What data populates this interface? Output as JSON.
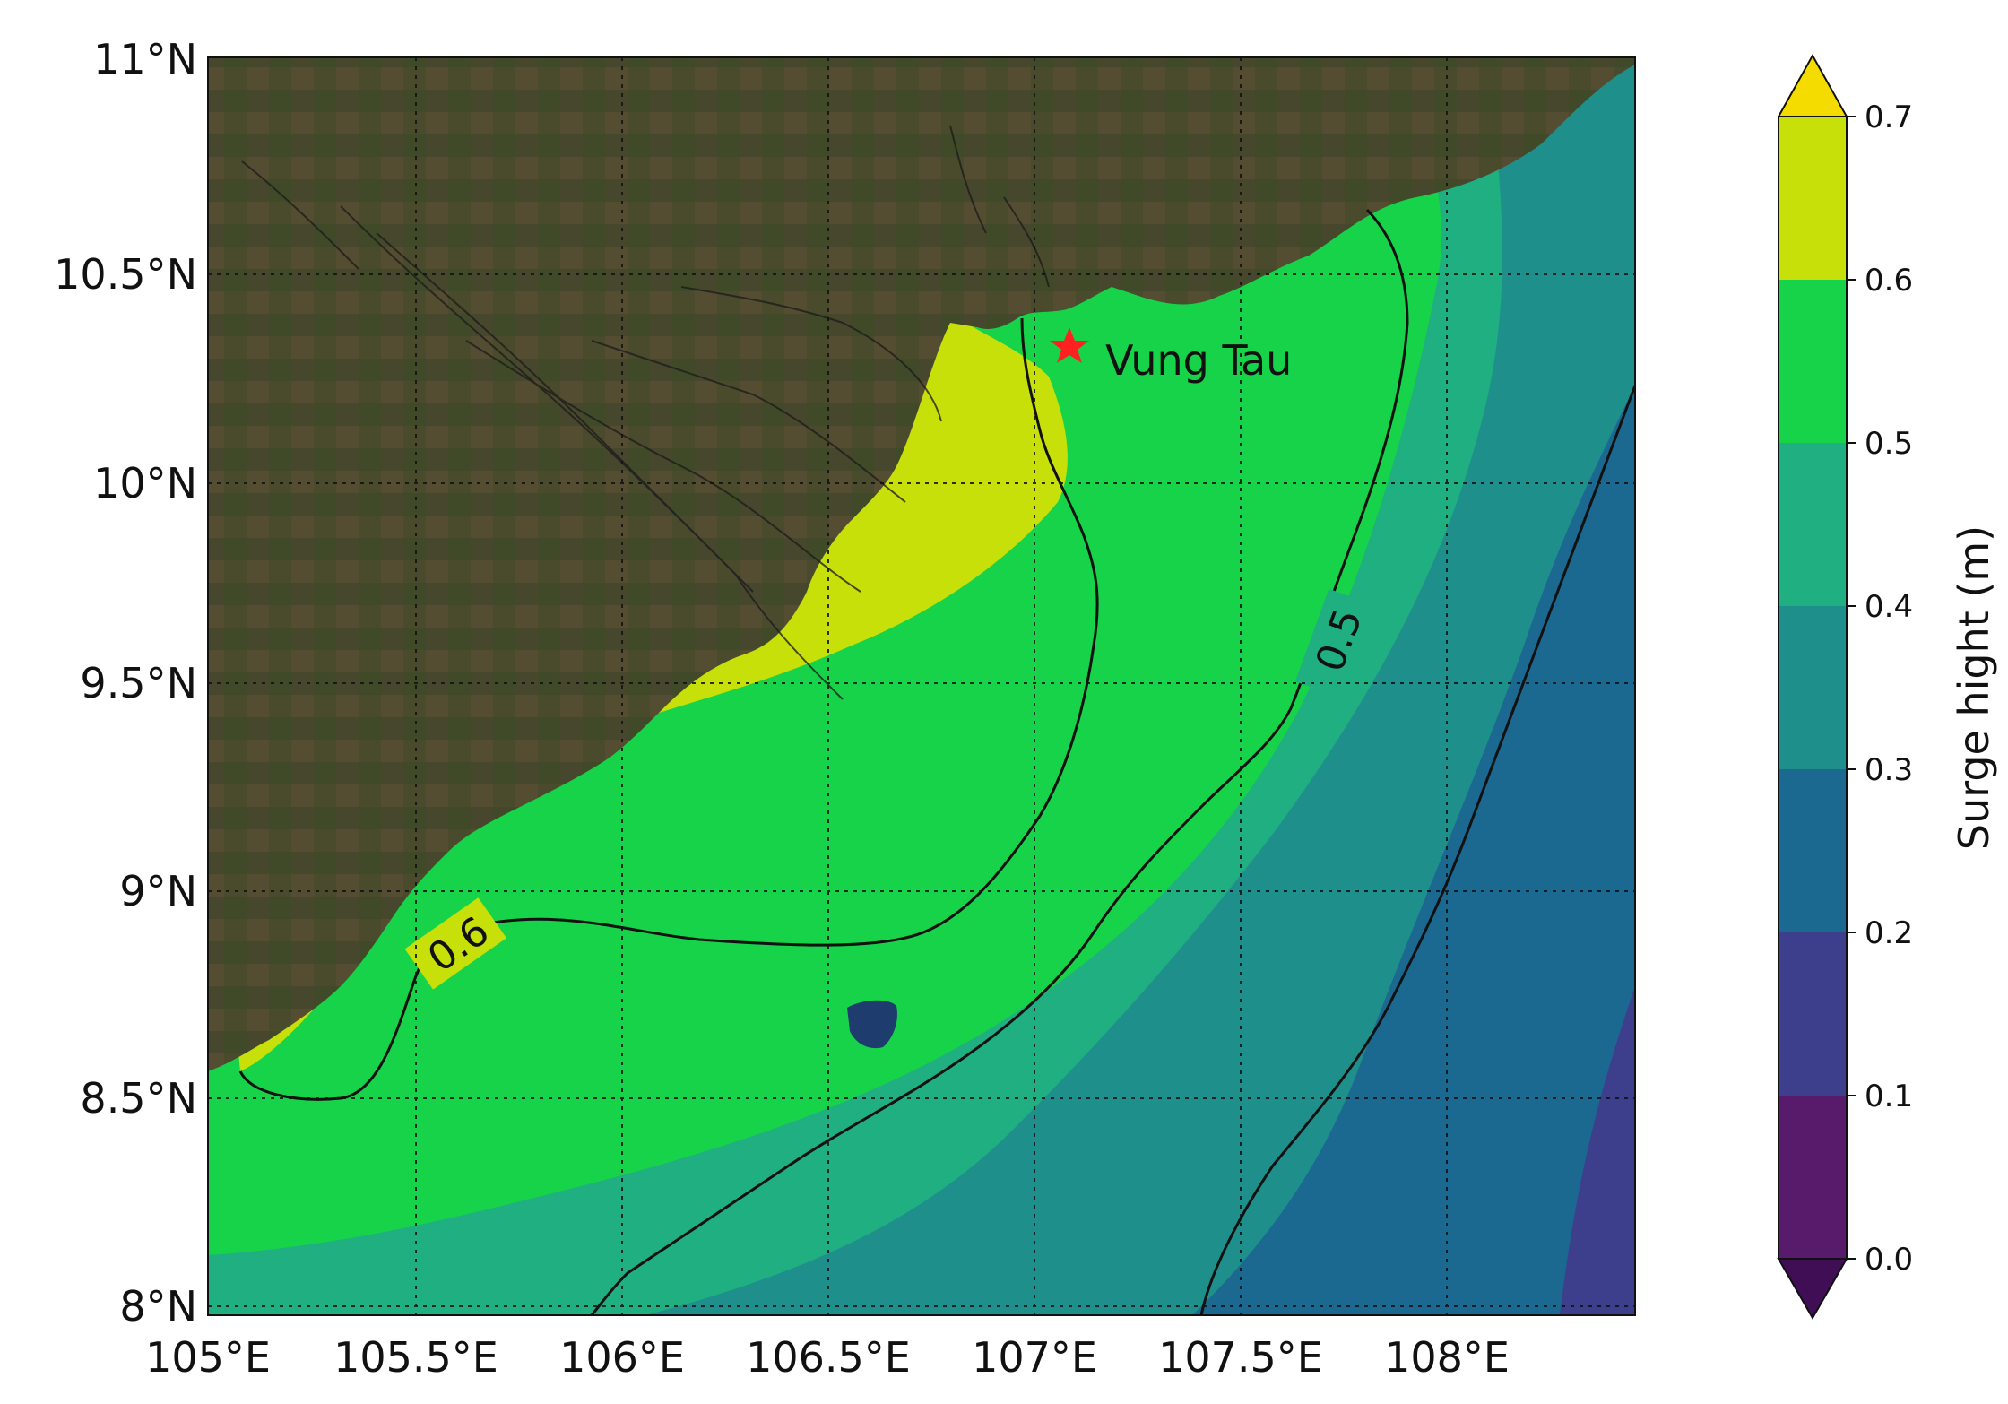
{
  "map": {
    "x_ticks": [
      "105°E",
      "105.5°E",
      "106°E",
      "106.5°E",
      "107°E",
      "107.5°E",
      "108°E"
    ],
    "y_ticks": [
      "11°N",
      "10.5°N",
      "10°N",
      "9.5°N",
      "9°N",
      "8.5°N",
      "8°N"
    ],
    "lon_range": [
      105,
      108.45
    ],
    "lat_range": [
      8,
      11
    ],
    "gridlines": true,
    "gridline_style": "dotted",
    "contour_labels": [
      "0.6",
      "0.5"
    ],
    "place_label": "Vung Tau",
    "marker": {
      "name": "Vung Tau",
      "symbol": "star",
      "color": "#ff2020",
      "lon": 107.08,
      "lat": 10.34
    }
  },
  "colorbar": {
    "label": "Surge hight (m)",
    "ticks": [
      "0.0",
      "0.1",
      "0.2",
      "0.3",
      "0.4",
      "0.5",
      "0.6",
      "0.7"
    ],
    "extend": "both",
    "band_colors": [
      "#581a6a",
      "#3d3f8c",
      "#1b6891",
      "#1f8f8c",
      "#1faf80",
      "#16d34a",
      "#c8e00a"
    ],
    "under_color": "#3f0e55",
    "over_color": "#f5dc00",
    "land_color": "#4d4a2c"
  }
}
